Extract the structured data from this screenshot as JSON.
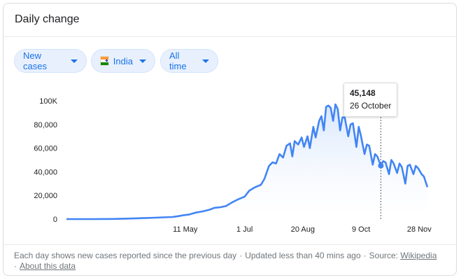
{
  "card": {
    "title": "Daily change"
  },
  "filters": {
    "metric": "New cases",
    "location": "India",
    "range": "All time"
  },
  "tooltip": {
    "value": "45,148",
    "date": "26 October"
  },
  "footer": {
    "description": "Each day shows new cases reported since the previous day",
    "separator": "·",
    "updated": "Updated less than 40 mins ago",
    "source_label": "Source:",
    "source_link": "Wikipedia",
    "about_link": "About this data"
  },
  "colors": {
    "line": "#4285f4",
    "area_top": "#e8f0fe",
    "accent": "#1a73e8",
    "flag_saffron": "#ff9933",
    "flag_white": "#ffffff",
    "flag_green": "#138808"
  },
  "icons": {
    "chip_caret": "caret-down-icon",
    "location_flag": "india-flag-icon"
  },
  "chart_data": {
    "type": "area",
    "title": "",
    "xlabel": "",
    "ylabel": "",
    "ylim": [
      0,
      100000
    ],
    "grid": false,
    "y_ticks": [
      0,
      20000,
      40000,
      60000,
      80000,
      100000
    ],
    "y_tick_labels": [
      "0",
      "20,000",
      "40,000",
      "60,000",
      "80,000",
      "100K"
    ],
    "x_domain": [
      "2020-01-30",
      "2020-12-05"
    ],
    "x_ticks": [
      {
        "date": "2020-05-11",
        "label": "11 May"
      },
      {
        "date": "2020-07-01",
        "label": "1 Jul"
      },
      {
        "date": "2020-08-20",
        "label": "20 Aug"
      },
      {
        "date": "2020-10-09",
        "label": "9 Oct"
      },
      {
        "date": "2020-11-28",
        "label": "28 Nov"
      }
    ],
    "highlight": {
      "date": "2020-10-26",
      "value": 45148
    },
    "series": [
      {
        "points": [
          [
            "2020-01-30",
            0
          ],
          [
            "2020-02-20",
            0
          ],
          [
            "2020-03-10",
            100
          ],
          [
            "2020-03-25",
            500
          ],
          [
            "2020-04-05",
            800
          ],
          [
            "2020-04-15",
            1200
          ],
          [
            "2020-04-22",
            1500
          ],
          [
            "2020-04-30",
            1800
          ],
          [
            "2020-05-05",
            2500
          ],
          [
            "2020-05-09",
            3200
          ],
          [
            "2020-05-14",
            3800
          ],
          [
            "2020-05-20",
            5500
          ],
          [
            "2020-05-26",
            6500
          ],
          [
            "2020-06-01",
            8000
          ],
          [
            "2020-06-05",
            9500
          ],
          [
            "2020-06-10",
            10000
          ],
          [
            "2020-06-15",
            11000
          ],
          [
            "2020-06-20",
            14000
          ],
          [
            "2020-06-25",
            16500
          ],
          [
            "2020-07-01",
            19000
          ],
          [
            "2020-07-05",
            24000
          ],
          [
            "2020-07-10",
            27000
          ],
          [
            "2020-07-15",
            29000
          ],
          [
            "2020-07-18",
            34000
          ],
          [
            "2020-07-22",
            45000
          ],
          [
            "2020-07-25",
            48000
          ],
          [
            "2020-07-28",
            47000
          ],
          [
            "2020-07-31",
            55000
          ],
          [
            "2020-08-03",
            52000
          ],
          [
            "2020-08-06",
            62000
          ],
          [
            "2020-08-09",
            64000
          ],
          [
            "2020-08-11",
            53000
          ],
          [
            "2020-08-13",
            66000
          ],
          [
            "2020-08-16",
            63000
          ],
          [
            "2020-08-19",
            69000
          ],
          [
            "2020-08-21",
            61000
          ],
          [
            "2020-08-24",
            70000
          ],
          [
            "2020-08-26",
            60000
          ],
          [
            "2020-08-29",
            78000
          ],
          [
            "2020-08-31",
            69000
          ],
          [
            "2020-09-03",
            83000
          ],
          [
            "2020-09-05",
            87000
          ],
          [
            "2020-09-07",
            75000
          ],
          [
            "2020-09-09",
            95000
          ],
          [
            "2020-09-11",
            96000
          ],
          [
            "2020-09-13",
            94000
          ],
          [
            "2020-09-15",
            83000
          ],
          [
            "2020-09-17",
            97000
          ],
          [
            "2020-09-19",
            93000
          ],
          [
            "2020-09-21",
            75000
          ],
          [
            "2020-09-23",
            86000
          ],
          [
            "2020-09-25",
            86000
          ],
          [
            "2020-09-28",
            70000
          ],
          [
            "2020-09-30",
            80000
          ],
          [
            "2020-10-02",
            81000
          ],
          [
            "2020-10-05",
            61000
          ],
          [
            "2020-10-07",
            78000
          ],
          [
            "2020-10-09",
            70000
          ],
          [
            "2020-10-12",
            55000
          ],
          [
            "2020-10-14",
            63000
          ],
          [
            "2020-10-16",
            62000
          ],
          [
            "2020-10-19",
            46000
          ],
          [
            "2020-10-21",
            55000
          ],
          [
            "2020-10-23",
            53000
          ],
          [
            "2020-10-26",
            45148
          ],
          [
            "2020-10-28",
            49000
          ],
          [
            "2020-10-30",
            48000
          ],
          [
            "2020-11-02",
            38000
          ],
          [
            "2020-11-04",
            50000
          ],
          [
            "2020-11-06",
            47000
          ],
          [
            "2020-11-09",
            39000
          ],
          [
            "2020-11-11",
            47000
          ],
          [
            "2020-11-13",
            44000
          ],
          [
            "2020-11-16",
            30000
          ],
          [
            "2020-11-18",
            45000
          ],
          [
            "2020-11-20",
            46000
          ],
          [
            "2020-11-23",
            38000
          ],
          [
            "2020-11-25",
            45000
          ],
          [
            "2020-11-27",
            43000
          ],
          [
            "2020-11-30",
            38000
          ],
          [
            "2020-12-02",
            36000
          ],
          [
            "2020-12-05",
            27000
          ]
        ]
      }
    ]
  }
}
